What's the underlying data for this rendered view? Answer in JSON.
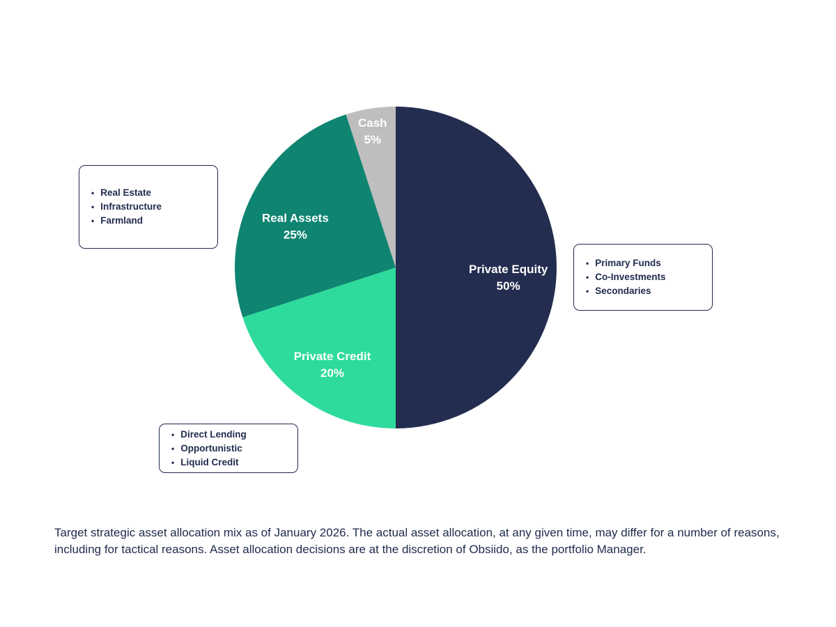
{
  "chart_data": {
    "type": "pie",
    "title": "",
    "start_angle_deg": 0,
    "direction": "clockwise",
    "categories": [
      "Private Equity",
      "Private Credit",
      "Real Assets",
      "Cash"
    ],
    "values": [
      50,
      20,
      25,
      5
    ],
    "slices": [
      {
        "label": "Private Equity",
        "value": 50,
        "pct_label": "50%",
        "color": "#232D4F",
        "text_color": "#FFFFFF",
        "label_r": 0.7
      },
      {
        "label": "Private Credit",
        "value": 20,
        "pct_label": "20%",
        "color": "#2EDB9C",
        "text_color": "#FFFFFF",
        "label_r": 0.67
      },
      {
        "label": "Real Assets",
        "value": 25,
        "pct_label": "25%",
        "color": "#0E8471",
        "text_color": "#FFFFFF",
        "label_r": 0.7
      },
      {
        "label": "Cash",
        "value": 5,
        "pct_label": "5%",
        "color": "#BEBEBE",
        "text_color": "#FFFFFF",
        "label_r": 0.92
      }
    ],
    "legend_position": "none",
    "grid": false
  },
  "callouts": {
    "real_assets": {
      "items": [
        "Real Estate",
        "Infrastructure",
        "Farmland"
      ]
    },
    "private_equity": {
      "items": [
        "Primary Funds",
        "Co-Investments",
        "Secondaries"
      ]
    },
    "private_credit": {
      "items": [
        "Direct Lending",
        "Opportunistic",
        "Liquid Credit"
      ]
    }
  },
  "footnote": "Target strategic asset allocation mix as of January 2026. The actual asset allocation, at any given time, may differ for a number of reasons, including for tactical reasons. Asset allocation decisions are at the discretion of Obsiido, as the portfolio Manager."
}
